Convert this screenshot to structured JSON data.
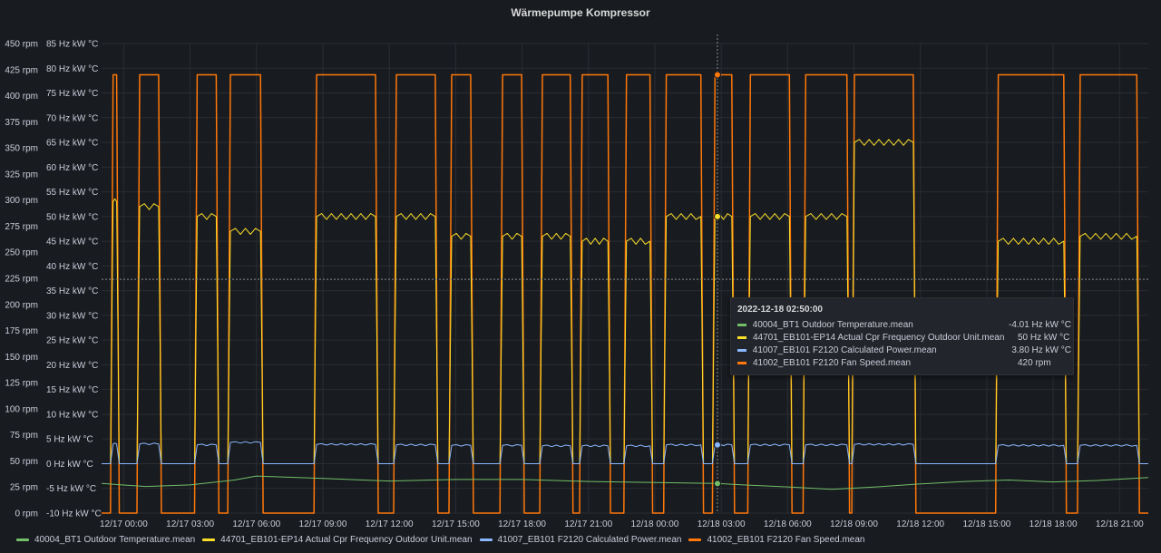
{
  "panel": {
    "title": "Wärmepumpe Kompressor"
  },
  "colors": {
    "background": "#181b1f",
    "grid": "#2a2d33",
    "axis_text": "#ccccdc",
    "outdoor_temp": "#73bf69",
    "cpr_frequency": "#fade2a",
    "calc_power": "#8ab8ff",
    "fan_speed": "#ff780a"
  },
  "legend": [
    {
      "name": "40004_BT1 Outdoor Temperature.mean",
      "color": "#73bf69"
    },
    {
      "name": "44701_EB101-EP14 Actual Cpr Frequency Outdoor Unit.mean",
      "color": "#fade2a"
    },
    {
      "name": "41007_EB101 F2120 Calculated Power.mean",
      "color": "#8ab8ff"
    },
    {
      "name": "41002_EB101 F2120 Fan Speed.mean",
      "color": "#ff780a"
    }
  ],
  "tooltip": {
    "time": "2022-12-18 02:50:00",
    "rows": [
      {
        "name": "40004_BT1 Outdoor Temperature.mean",
        "value": "-4.01 Hz kW °C",
        "color": "#73bf69"
      },
      {
        "name": "44701_EB101-EP14 Actual Cpr Frequency Outdoor Unit.mean",
        "value": "50 Hz kW °C",
        "color": "#fade2a"
      },
      {
        "name": "41007_EB101 F2120 Calculated Power.mean",
        "value": "3.80 Hz kW °C",
        "color": "#8ab8ff"
      },
      {
        "name": "41002_EB101 F2120 Fan Speed.mean",
        "value": "420 rpm",
        "color": "#ff780a"
      }
    ]
  },
  "chart_data": {
    "type": "line",
    "title": "Wärmepumpe Kompressor",
    "grid": true,
    "legend_position": "bottom-left",
    "x_unit": "hours since 2022-12-17 00:00",
    "xlim": [
      -1.0,
      46.3
    ],
    "x_ticks": [
      {
        "x": 0,
        "label": "12/17 00:00"
      },
      {
        "x": 3,
        "label": "12/17 03:00"
      },
      {
        "x": 6,
        "label": "12/17 06:00"
      },
      {
        "x": 9,
        "label": "12/17 09:00"
      },
      {
        "x": 12,
        "label": "12/17 12:00"
      },
      {
        "x": 15,
        "label": "12/17 15:00"
      },
      {
        "x": 18,
        "label": "12/17 18:00"
      },
      {
        "x": 21,
        "label": "12/17 21:00"
      },
      {
        "x": 24,
        "label": "12/18 00:00"
      },
      {
        "x": 27,
        "label": "12/18 03:00"
      },
      {
        "x": 30,
        "label": "12/18 06:00"
      },
      {
        "x": 33,
        "label": "12/18 09:00"
      },
      {
        "x": 36,
        "label": "12/18 12:00"
      },
      {
        "x": 39,
        "label": "12/18 15:00"
      },
      {
        "x": 42,
        "label": "12/18 18:00"
      },
      {
        "x": 45,
        "label": "12/18 21:00"
      }
    ],
    "y_left": {
      "label": "",
      "ylim": [
        0,
        450
      ],
      "ticks": [
        "0 rpm",
        "25 rpm",
        "50 rpm",
        "75 rpm",
        "100 rpm",
        "125 rpm",
        "150 rpm",
        "175 rpm",
        "200 rpm",
        "225 rpm",
        "250 rpm",
        "275 rpm",
        "300 rpm",
        "325 rpm",
        "350 rpm",
        "375 rpm",
        "400 rpm",
        "425 rpm",
        "450 rpm"
      ]
    },
    "y_right": {
      "label": "",
      "ylim": [
        -10,
        85
      ],
      "ticks": [
        "-10 Hz kW °C",
        "-5 Hz kW °C",
        "0 Hz kW °C",
        "5 Hz kW °C",
        "10 Hz kW °C",
        "15 Hz kW °C",
        "20 Hz kW °C",
        "25 Hz kW °C",
        "30 Hz kW °C",
        "35 Hz kW °C",
        "40 Hz kW °C",
        "45 Hz kW °C",
        "50 Hz kW °C",
        "55 Hz kW °C",
        "60 Hz kW °C",
        "65 Hz kW °C",
        "70 Hz kW °C",
        "75 Hz kW °C",
        "80 Hz kW °C",
        "85 Hz kW °C"
      ]
    },
    "crosshair": {
      "x": 26.83,
      "y_rpm": 224
    },
    "run_intervals": [
      [
        -0.6,
        -0.2
      ],
      [
        0.6,
        1.7
      ],
      [
        3.2,
        4.3
      ],
      [
        4.7,
        6.3
      ],
      [
        8.6,
        11.5
      ],
      [
        12.2,
        14.2
      ],
      [
        14.7,
        15.8
      ],
      [
        17.0,
        18.1
      ],
      [
        18.8,
        20.3
      ],
      [
        20.6,
        22.0
      ],
      [
        22.6,
        23.9
      ],
      [
        24.4,
        26.2
      ],
      [
        26.6,
        27.6
      ],
      [
        28.2,
        30.2
      ],
      [
        30.7,
        32.8
      ],
      [
        32.9,
        35.8
      ],
      [
        39.4,
        42.6
      ],
      [
        43.1,
        45.9
      ]
    ],
    "series": [
      {
        "name": "40004_BT1 Outdoor Temperature.mean",
        "color": "#73bf69",
        "axis": "right",
        "x": [
          -1.0,
          1.0,
          3.0,
          5.0,
          6.0,
          9.0,
          12.0,
          15.0,
          18.0,
          21.0,
          24.0,
          26.8,
          28.0,
          30.0,
          32.0,
          34.0,
          36.0,
          38.0,
          40.0,
          42.0,
          44.0,
          46.3
        ],
        "values": [
          -4,
          -4.6,
          -4.3,
          -3.3,
          -2.5,
          -3,
          -3.5,
          -3.2,
          -3.2,
          -3.6,
          -3.8,
          -4.01,
          -4.3,
          -4.7,
          -5.2,
          -4.7,
          -4.1,
          -3.6,
          -3.3,
          -3.7,
          -3.4,
          -2.8
        ]
      },
      {
        "name": "44701_EB101-EP14 Actual Cpr Frequency Outdoor Unit.mean",
        "color": "#fade2a",
        "axis": "right",
        "run_values": [
          53,
          52,
          50,
          47,
          50,
          50,
          46,
          46,
          46,
          45,
          45,
          50,
          50,
          50,
          50,
          65,
          45,
          46
        ]
      },
      {
        "name": "41007_EB101 F2120 Calculated Power.mean",
        "color": "#8ab8ff",
        "axis": "right",
        "run_values": [
          4.0,
          4.0,
          3.8,
          4.3,
          3.9,
          3.8,
          3.7,
          3.7,
          3.6,
          3.6,
          3.6,
          3.8,
          3.8,
          3.8,
          3.8,
          3.9,
          3.7,
          3.7
        ]
      },
      {
        "name": "41002_EB101 F2120 Fan Speed.mean",
        "color": "#ff780a",
        "axis": "left",
        "on_value": 420,
        "off_value": 0
      }
    ]
  }
}
